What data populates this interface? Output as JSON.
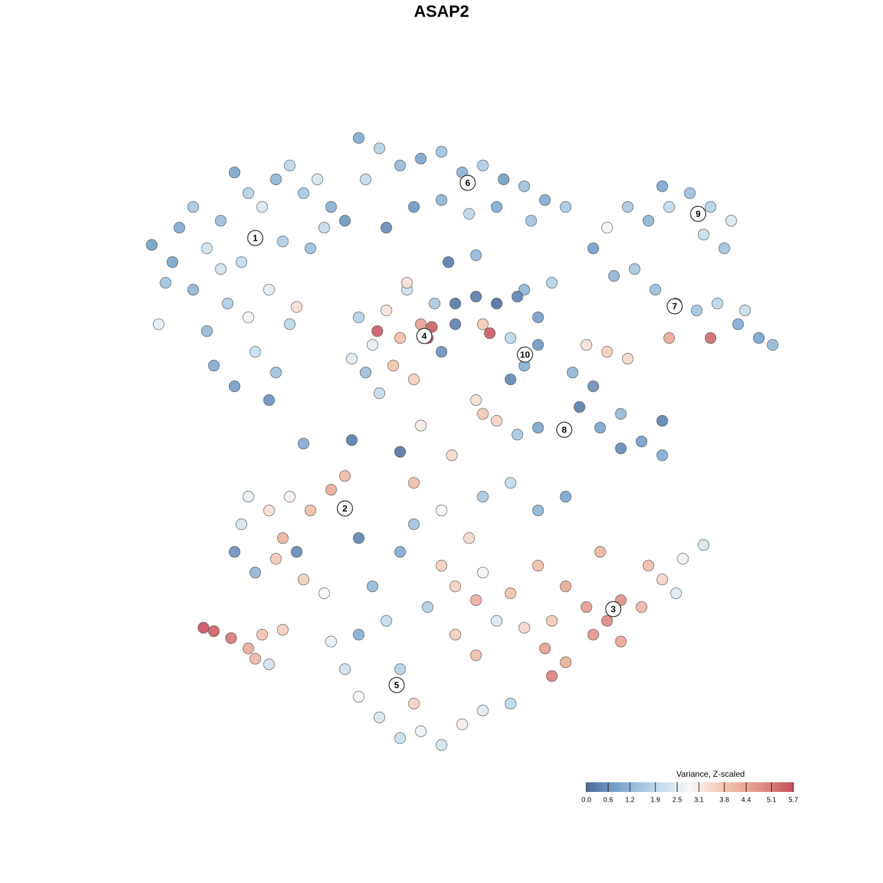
{
  "chart_data": {
    "type": "scatter",
    "title": "ASAP2",
    "xlim": [
      0,
      128
    ],
    "ylim": [
      0,
      128
    ],
    "x": [
      22,
      24,
      26,
      28,
      30,
      32,
      34,
      36,
      38,
      40,
      42,
      44,
      46,
      48,
      50,
      35,
      39,
      33,
      30,
      31,
      34,
      37,
      40,
      42,
      36,
      28,
      23,
      25,
      45,
      47,
      43,
      39,
      32,
      41,
      52,
      55,
      58,
      61,
      64,
      67,
      70,
      73,
      76,
      79,
      82,
      60,
      64,
      68,
      72,
      56,
      53,
      69,
      65,
      77,
      88,
      91,
      94,
      97,
      100,
      103,
      106,
      105,
      96,
      102,
      86,
      89,
      92,
      95,
      98,
      101,
      104,
      107,
      110,
      112,
      80,
      76,
      103,
      97,
      108,
      52,
      54,
      56,
      59,
      61,
      62,
      63,
      54.7,
      57,
      60,
      53,
      55,
      64,
      66,
      58,
      51,
      62.6,
      59,
      66,
      69,
      72,
      75,
      78,
      71,
      74,
      76,
      78,
      74,
      70,
      83,
      85,
      88,
      91,
      86,
      84,
      87,
      90,
      93,
      96,
      96,
      90,
      78,
      75,
      72,
      44,
      51,
      58,
      61,
      65.5,
      69,
      70,
      36,
      39,
      42,
      45,
      48,
      50,
      34,
      37,
      40,
      41,
      43,
      44,
      47,
      35,
      52,
      66,
      70,
      74,
      78,
      82,
      85,
      88,
      90,
      93,
      96,
      99,
      102,
      80,
      79,
      82,
      86,
      90,
      94,
      76,
      69,
      80,
      87,
      98,
      48,
      50,
      52,
      55,
      58,
      61,
      64,
      67,
      70,
      74,
      60,
      58,
      56,
      54,
      58,
      60,
      64,
      68,
      70,
      74,
      78,
      82,
      62,
      66,
      69,
      72,
      52,
      60,
      64,
      29.5,
      31,
      33.5,
      36,
      37,
      38,
      41,
      39
    ],
    "y": [
      92.5,
      87,
      95,
      98,
      92,
      96,
      103,
      100,
      98,
      102,
      104,
      100,
      102,
      98,
      96,
      90,
      86,
      84,
      80,
      75,
      72,
      77,
      74,
      81,
      82,
      86,
      81,
      90,
      92,
      95,
      83.5,
      70,
      89,
      93,
      108,
      106.5,
      104,
      105,
      106,
      103,
      104,
      102,
      101,
      99,
      98,
      98,
      99,
      97,
      98,
      95,
      102,
      91,
      90,
      96,
      95,
      98,
      96,
      98,
      100,
      98,
      96,
      92,
      101,
      94,
      92,
      88,
      89,
      86,
      84,
      83,
      84,
      81,
      79,
      78,
      87,
      86,
      79,
      79,
      83,
      82,
      78,
      83,
      86,
      81,
      79,
      84,
      80,
      75,
      73,
      74,
      71,
      77,
      81,
      79,
      76,
      80.6,
      87,
      84,
      85,
      84,
      85,
      82,
      79.7,
      79,
      75,
      78,
      73,
      81,
      74,
      78,
      77,
      76,
      72,
      69,
      66,
      63,
      64,
      62,
      67,
      68,
      66,
      65,
      67,
      63.7,
      64.2,
      62.5,
      66.3,
      62,
      70,
      68,
      56,
      54,
      56,
      54,
      57,
      59,
      48,
      45,
      47,
      50,
      48,
      44,
      42,
      52,
      50,
      43,
      45,
      42,
      46,
      43,
      40,
      38,
      35,
      40,
      44,
      47,
      49,
      38,
      34,
      32,
      36,
      41,
      46,
      37,
      41,
      30,
      48,
      42,
      35,
      31,
      27,
      24,
      21,
      22,
      20,
      23,
      25,
      26,
      26,
      31,
      38,
      43,
      48,
      52,
      54,
      50,
      56,
      58,
      54,
      56,
      40,
      36,
      33,
      38,
      36,
      58,
      46,
      37,
      36.5,
      35.5,
      34,
      32.5,
      36,
      36.7,
      31.7
    ],
    "values": [
      0.8,
      1.5,
      1.0,
      1.6,
      2.2,
      1.4,
      0.9,
      1.8,
      2.4,
      1.2,
      1.9,
      1.6,
      2.3,
      1.1,
      0.7,
      2.0,
      2.6,
      1.7,
      1.3,
      1.0,
      0.8,
      2.1,
      1.5,
      1.9,
      2.8,
      1.2,
      2.6,
      0.9,
      1.4,
      2.0,
      3.3,
      0.6,
      2.2,
      1.7,
      1.0,
      1.8,
      1.3,
      0.9,
      1.5,
      1.1,
      1.7,
      0.8,
      1.4,
      1.0,
      1.6,
      0.7,
      1.2,
      1.9,
      1.0,
      0.5,
      2.0,
      1.3,
      0.3,
      1.5,
      2.8,
      1.6,
      1.2,
      2.0,
      1.4,
      1.8,
      2.4,
      1.5,
      0.9,
      2.1,
      0.8,
      1.2,
      1.6,
      1.4,
      2.6,
      1.5,
      1.9,
      1.0,
      0.9,
      1.3,
      1.8,
      1.2,
      5.3,
      4.3,
      2.1,
      1.8,
      2.6,
      3.2,
      2.2,
      4.5,
      5.6,
      1.6,
      5.5,
      3.8,
      3.6,
      1.4,
      2.0,
      0.6,
      0.4,
      3.9,
      2.5,
      5.4,
      3.3,
      0.2,
      0.3,
      0.1,
      0.4,
      0.8,
      5.5,
      1.9,
      1.1,
      0.7,
      0.5,
      3.7,
      1.2,
      3.2,
      3.6,
      3.4,
      0.6,
      0.3,
      0.9,
      0.5,
      0.8,
      1.0,
      0.4,
      1.3,
      0.9,
      1.6,
      3.5,
      1.0,
      0.3,
      0.2,
      3.1,
      3.4,
      3.3,
      3.7,
      2.6,
      3.3,
      3.0,
      3.9,
      4.3,
      4.0,
      0.6,
      1.2,
      3.7,
      4.1,
      0.5,
      3.6,
      2.8,
      2.3,
      0.4,
      3.5,
      2.8,
      3.8,
      3.9,
      4.3,
      4.6,
      4.9,
      4.4,
      4.0,
      3.5,
      2.7,
      2.3,
      3.7,
      4.5,
      4.2,
      4.7,
      4.8,
      3.9,
      3.4,
      4.2,
      5.0,
      4.1,
      2.5,
      2.6,
      2.2,
      2.9,
      2.4,
      2.1,
      2.7,
      2.3,
      3.0,
      2.5,
      1.9,
      3.5,
      1.8,
      2.0,
      1.3,
      1.0,
      1.5,
      2.8,
      3.4,
      1.6,
      2.0,
      1.2,
      0.9,
      1.7,
      3.6,
      3.9,
      2.4,
      1.1,
      3.9,
      3.6,
      5.6,
      5.4,
      5.1,
      4.3,
      4.0,
      3.8,
      3.6,
      2.2
    ],
    "annotations": [
      {
        "text": "1",
        "x": 37,
        "y": 93.5
      },
      {
        "text": "2",
        "x": 50,
        "y": 54.3
      },
      {
        "text": "3",
        "x": 88.9,
        "y": 39.7
      },
      {
        "text": "4",
        "x": 61.5,
        "y": 79.3
      },
      {
        "text": "5",
        "x": 57.5,
        "y": 28.7
      },
      {
        "text": "6",
        "x": 67.8,
        "y": 101.5
      },
      {
        "text": "7",
        "x": 97.8,
        "y": 83.6
      },
      {
        "text": "8",
        "x": 81.8,
        "y": 65.7
      },
      {
        "text": "9",
        "x": 101.2,
        "y": 97
      },
      {
        "text": "10",
        "x": 76.1,
        "y": 76.6
      }
    ],
    "colorbar": {
      "title": "Variance, Z-scaled",
      "clim": [
        0,
        5.7
      ],
      "ticks": [
        {
          "value": 0,
          "label": "0.0"
        },
        0.6,
        1.2,
        1.9,
        2.5,
        3.1,
        3.8,
        4.4,
        5.1,
        5.7
      ],
      "colors": [
        "#4a6c9b",
        "#7fa9d0",
        "#bcd8ea",
        "#f7f7f7",
        "#f3c4ad",
        "#e29488",
        "#c44e5c"
      ]
    }
  }
}
